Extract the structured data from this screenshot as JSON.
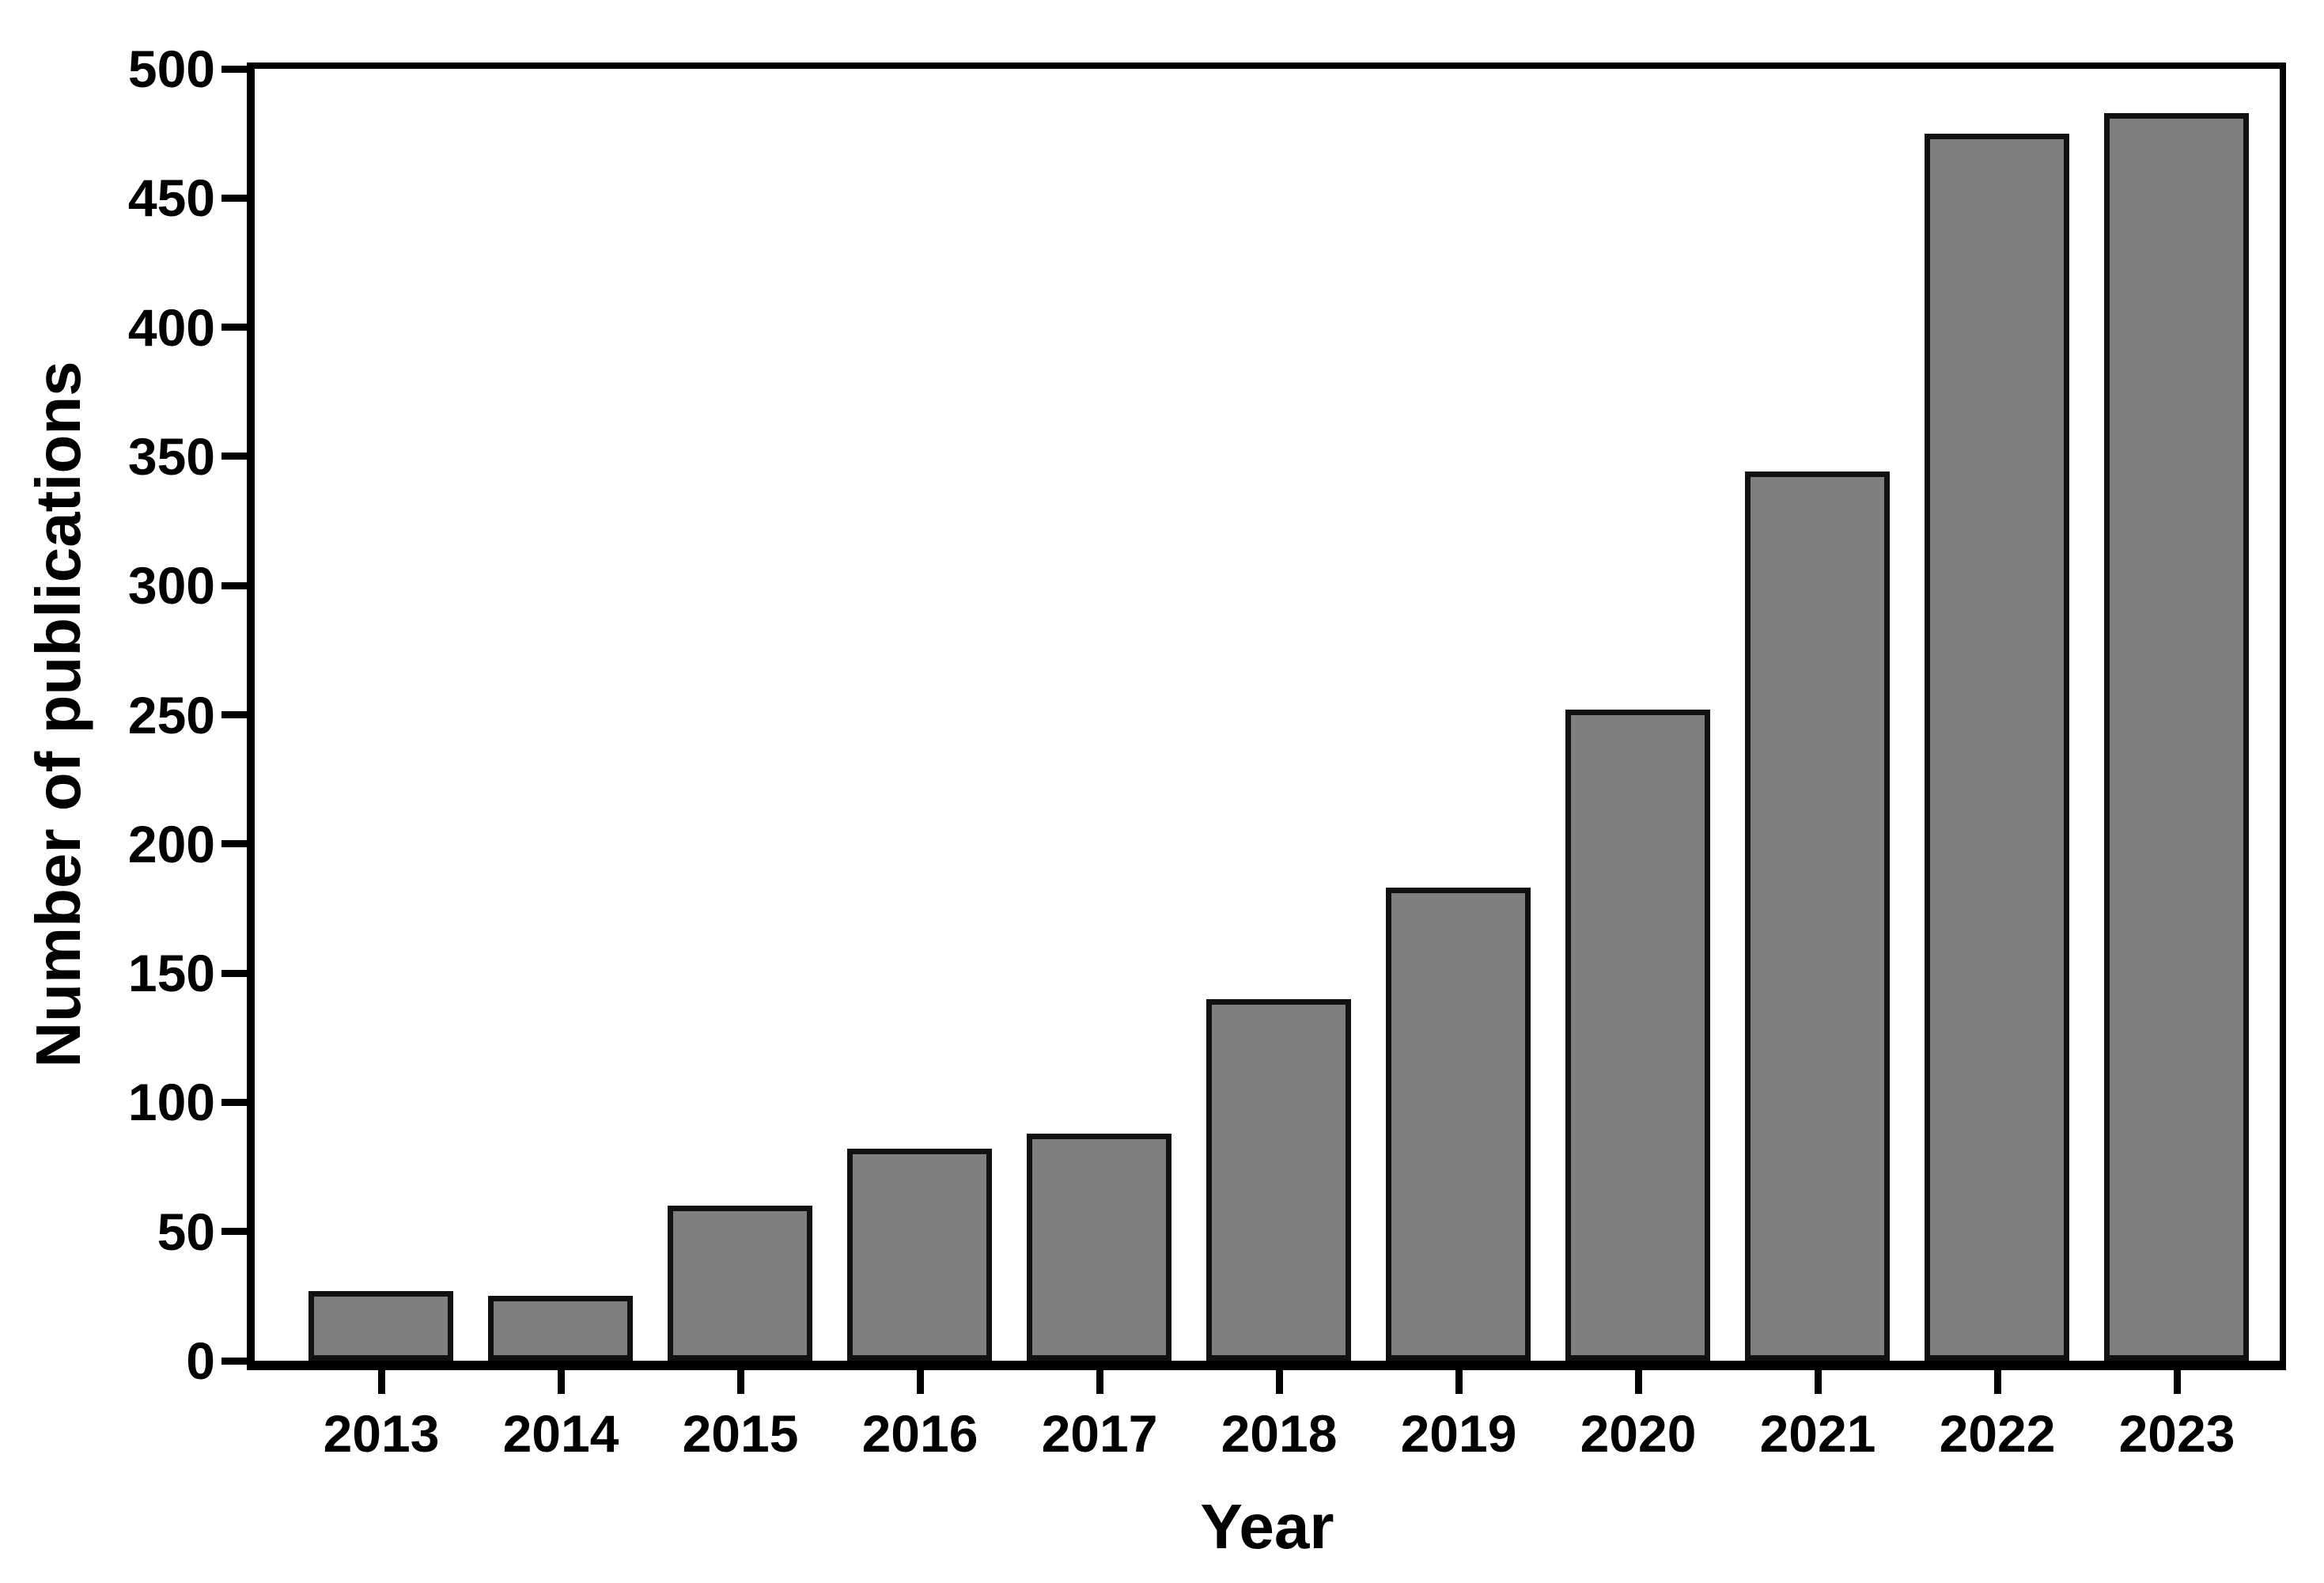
{
  "chart_data": {
    "type": "bar",
    "title": "",
    "xlabel": "Year",
    "ylabel": "Number of publications",
    "categories": [
      "2013",
      "2014",
      "2015",
      "2016",
      "2017",
      "2018",
      "2019",
      "2020",
      "2021",
      "2022",
      "2023"
    ],
    "values": [
      27,
      25,
      60,
      82,
      88,
      140,
      183,
      252,
      344,
      475,
      483
    ],
    "ylim": [
      0,
      500
    ],
    "ytick_step": 50,
    "yticks": [
      0,
      50,
      100,
      150,
      200,
      250,
      300,
      350,
      400,
      450,
      500
    ],
    "grid": false,
    "legend": false,
    "bar_fill_color": "#7f7f7f",
    "bar_border_color": "#111111",
    "axis_color": "#000000",
    "text_color": "#000000",
    "background_color": "#ffffff"
  }
}
